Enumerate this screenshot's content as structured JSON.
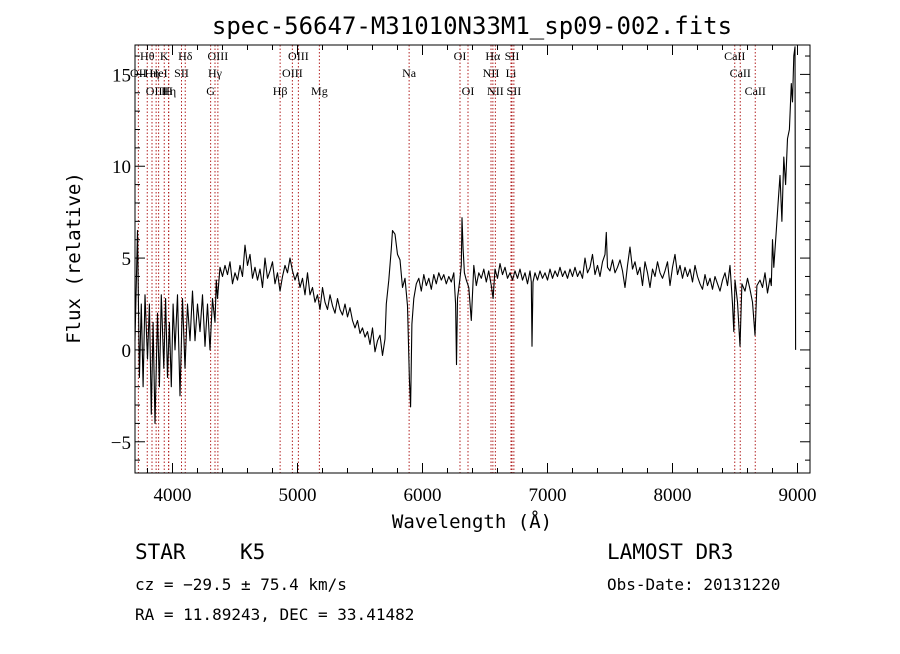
{
  "chart_data": {
    "type": "line",
    "title": "spec-56647-M31010N33M1_sp09-002.fits",
    "xlabel": "Wavelength (Å)",
    "ylabel": "Flux (relative)",
    "xlim": [
      3700,
      9100
    ],
    "ylim": [
      -6.7,
      16.6
    ],
    "x_ticks": [
      4000,
      5000,
      6000,
      7000,
      8000,
      9000
    ],
    "y_ticks": [
      -5,
      0,
      5,
      10,
      15
    ],
    "x_minor_step": 200,
    "y_minor_step": 1,
    "line_color": "#000000",
    "marker_color": "#b22222",
    "spectrum": {
      "name": "flux",
      "points": [
        [
          3700,
          0.5
        ],
        [
          3720,
          6.5
        ],
        [
          3735,
          -1.5
        ],
        [
          3750,
          2.5
        ],
        [
          3765,
          -2.0
        ],
        [
          3780,
          3.0
        ],
        [
          3800,
          -0.5
        ],
        [
          3815,
          2.5
        ],
        [
          3830,
          -3.5
        ],
        [
          3845,
          1.5
        ],
        [
          3860,
          -4.0
        ],
        [
          3880,
          2.0
        ],
        [
          3895,
          -2.0
        ],
        [
          3910,
          3.0
        ],
        [
          3930,
          -1.0
        ],
        [
          3945,
          2.8
        ],
        [
          3960,
          -1.5
        ],
        [
          3975,
          1.5
        ],
        [
          3990,
          -2.0
        ],
        [
          4005,
          2.5
        ],
        [
          4020,
          0.0
        ],
        [
          4040,
          3.0
        ],
        [
          4060,
          -2.5
        ],
        [
          4080,
          2.8
        ],
        [
          4100,
          -1.0
        ],
        [
          4120,
          2.5
        ],
        [
          4140,
          0.5
        ],
        [
          4160,
          3.2
        ],
        [
          4180,
          0.5
        ],
        [
          4200,
          2.5
        ],
        [
          4220,
          1.0
        ],
        [
          4240,
          3.0
        ],
        [
          4260,
          0.2
        ],
        [
          4280,
          2.5
        ],
        [
          4300,
          0.0
        ],
        [
          4320,
          2.8
        ],
        [
          4340,
          1.5
        ],
        [
          4350,
          3.8
        ],
        [
          4360,
          2.8
        ],
        [
          4380,
          4.5
        ],
        [
          4400,
          4.0
        ],
        [
          4420,
          4.6
        ],
        [
          4440,
          4.1
        ],
        [
          4460,
          4.8
        ],
        [
          4480,
          3.6
        ],
        [
          4500,
          4.2
        ],
        [
          4520,
          3.8
        ],
        [
          4540,
          4.6
        ],
        [
          4560,
          4.0
        ],
        [
          4580,
          5.7
        ],
        [
          4600,
          4.6
        ],
        [
          4620,
          5.2
        ],
        [
          4640,
          3.9
        ],
        [
          4660,
          4.5
        ],
        [
          4680,
          3.8
        ],
        [
          4700,
          4.4
        ],
        [
          4720,
          3.4
        ],
        [
          4740,
          5.0
        ],
        [
          4760,
          3.9
        ],
        [
          4780,
          4.3
        ],
        [
          4800,
          4.8
        ],
        [
          4820,
          3.6
        ],
        [
          4840,
          4.2
        ],
        [
          4860,
          3.2
        ],
        [
          4880,
          4.0
        ],
        [
          4900,
          4.6
        ],
        [
          4920,
          4.2
        ],
        [
          4940,
          5.0
        ],
        [
          4960,
          4.3
        ],
        [
          4980,
          3.8
        ],
        [
          5000,
          4.2
        ],
        [
          5020,
          3.4
        ],
        [
          5040,
          3.9
        ],
        [
          5060,
          3.0
        ],
        [
          5080,
          4.2
        ],
        [
          5100,
          3.0
        ],
        [
          5120,
          3.4
        ],
        [
          5140,
          2.6
        ],
        [
          5160,
          3.0
        ],
        [
          5180,
          2.2
        ],
        [
          5200,
          3.4
        ],
        [
          5220,
          2.6
        ],
        [
          5240,
          2.2
        ],
        [
          5260,
          3.0
        ],
        [
          5280,
          2.4
        ],
        [
          5300,
          2.0
        ],
        [
          5320,
          2.8
        ],
        [
          5340,
          2.2
        ],
        [
          5360,
          1.9
        ],
        [
          5380,
          2.5
        ],
        [
          5400,
          1.8
        ],
        [
          5420,
          2.3
        ],
        [
          5440,
          1.6
        ],
        [
          5460,
          1.2
        ],
        [
          5480,
          1.6
        ],
        [
          5500,
          0.9
        ],
        [
          5520,
          1.2
        ],
        [
          5540,
          0.7
        ],
        [
          5560,
          1.0
        ],
        [
          5580,
          0.3
        ],
        [
          5600,
          1.2
        ],
        [
          5620,
          -0.1
        ],
        [
          5640,
          0.5
        ],
        [
          5660,
          0.8
        ],
        [
          5680,
          -0.3
        ],
        [
          5700,
          0.6
        ],
        [
          5710,
          2.5
        ],
        [
          5730,
          3.8
        ],
        [
          5750,
          5.5
        ],
        [
          5760,
          6.5
        ],
        [
          5780,
          6.3
        ],
        [
          5800,
          5.2
        ],
        [
          5820,
          4.9
        ],
        [
          5840,
          3.4
        ],
        [
          5860,
          3.9
        ],
        [
          5880,
          2.4
        ],
        [
          5895,
          -1.6
        ],
        [
          5905,
          -3.1
        ],
        [
          5915,
          1.4
        ],
        [
          5930,
          2.8
        ],
        [
          5950,
          3.6
        ],
        [
          5970,
          3.9
        ],
        [
          5990,
          3.2
        ],
        [
          6010,
          4.1
        ],
        [
          6030,
          3.5
        ],
        [
          6050,
          3.9
        ],
        [
          6070,
          3.3
        ],
        [
          6090,
          4.1
        ],
        [
          6110,
          3.6
        ],
        [
          6130,
          4.2
        ],
        [
          6150,
          3.8
        ],
        [
          6170,
          4.1
        ],
        [
          6190,
          3.6
        ],
        [
          6210,
          4.0
        ],
        [
          6230,
          3.7
        ],
        [
          6250,
          4.2
        ],
        [
          6265,
          2.5
        ],
        [
          6272,
          -0.8
        ],
        [
          6280,
          2.8
        ],
        [
          6300,
          3.9
        ],
        [
          6310,
          4.6
        ],
        [
          6316,
          7.2
        ],
        [
          6325,
          5.5
        ],
        [
          6335,
          4.2
        ],
        [
          6350,
          3.8
        ],
        [
          6370,
          3.4
        ],
        [
          6390,
          1.6
        ],
        [
          6410,
          4.6
        ],
        [
          6430,
          3.5
        ],
        [
          6450,
          4.2
        ],
        [
          6470,
          3.9
        ],
        [
          6490,
          4.4
        ],
        [
          6510,
          3.7
        ],
        [
          6530,
          4.3
        ],
        [
          6550,
          3.5
        ],
        [
          6565,
          2.8
        ],
        [
          6580,
          4.4
        ],
        [
          6600,
          3.9
        ],
        [
          6620,
          4.7
        ],
        [
          6640,
          4.1
        ],
        [
          6660,
          4.5
        ],
        [
          6680,
          3.9
        ],
        [
          6700,
          4.2
        ],
        [
          6720,
          3.8
        ],
        [
          6740,
          4.3
        ],
        [
          6760,
          3.9
        ],
        [
          6780,
          4.4
        ],
        [
          6800,
          3.8
        ],
        [
          6820,
          4.2
        ],
        [
          6840,
          3.6
        ],
        [
          6860,
          4.3
        ],
        [
          6870,
          3.7
        ],
        [
          6876,
          0.2
        ],
        [
          6884,
          3.7
        ],
        [
          6900,
          4.2
        ],
        [
          6920,
          3.8
        ],
        [
          6940,
          4.3
        ],
        [
          6960,
          3.9
        ],
        [
          6980,
          4.2
        ],
        [
          7000,
          3.8
        ],
        [
          7020,
          4.4
        ],
        [
          7040,
          3.9
        ],
        [
          7060,
          4.3
        ],
        [
          7080,
          4.0
        ],
        [
          7100,
          4.5
        ],
        [
          7120,
          4.0
        ],
        [
          7140,
          4.3
        ],
        [
          7160,
          3.9
        ],
        [
          7180,
          4.4
        ],
        [
          7200,
          4.0
        ],
        [
          7220,
          4.5
        ],
        [
          7240,
          4.0
        ],
        [
          7260,
          4.3
        ],
        [
          7280,
          3.9
        ],
        [
          7300,
          5.0
        ],
        [
          7320,
          4.2
        ],
        [
          7340,
          4.5
        ],
        [
          7360,
          5.2
        ],
        [
          7380,
          4.1
        ],
        [
          7400,
          4.6
        ],
        [
          7420,
          4.0
        ],
        [
          7440,
          4.8
        ],
        [
          7460,
          5.2
        ],
        [
          7470,
          6.4
        ],
        [
          7480,
          4.5
        ],
        [
          7500,
          4.3
        ],
        [
          7520,
          4.9
        ],
        [
          7540,
          4.2
        ],
        [
          7560,
          4.5
        ],
        [
          7580,
          4.9
        ],
        [
          7600,
          4.3
        ],
        [
          7620,
          3.4
        ],
        [
          7640,
          4.6
        ],
        [
          7660,
          5.6
        ],
        [
          7680,
          4.4
        ],
        [
          7700,
          4.8
        ],
        [
          7720,
          4.1
        ],
        [
          7740,
          4.5
        ],
        [
          7760,
          3.5
        ],
        [
          7780,
          4.8
        ],
        [
          7800,
          4.2
        ],
        [
          7820,
          3.4
        ],
        [
          7840,
          4.4
        ],
        [
          7860,
          4.0
        ],
        [
          7880,
          4.8
        ],
        [
          7900,
          4.2
        ],
        [
          7920,
          3.9
        ],
        [
          7940,
          4.3
        ],
        [
          7960,
          4.8
        ],
        [
          7980,
          3.5
        ],
        [
          8000,
          4.5
        ],
        [
          8020,
          5.2
        ],
        [
          8040,
          4.1
        ],
        [
          8060,
          4.6
        ],
        [
          8080,
          3.9
        ],
        [
          8100,
          4.5
        ],
        [
          8120,
          4.0
        ],
        [
          8140,
          4.4
        ],
        [
          8160,
          3.7
        ],
        [
          8180,
          4.6
        ],
        [
          8200,
          4.0
        ],
        [
          8220,
          3.6
        ],
        [
          8240,
          3.3
        ],
        [
          8260,
          4.1
        ],
        [
          8280,
          3.5
        ],
        [
          8300,
          3.9
        ],
        [
          8320,
          3.3
        ],
        [
          8340,
          4.0
        ],
        [
          8360,
          3.6
        ],
        [
          8380,
          3.2
        ],
        [
          8400,
          3.8
        ],
        [
          8420,
          4.2
        ],
        [
          8440,
          3.5
        ],
        [
          8460,
          4.6
        ],
        [
          8480,
          2.5
        ],
        [
          8490,
          1.0
        ],
        [
          8500,
          3.8
        ],
        [
          8520,
          2.6
        ],
        [
          8540,
          0.2
        ],
        [
          8555,
          3.6
        ],
        [
          8580,
          3.2
        ],
        [
          8600,
          3.9
        ],
        [
          8620,
          3.3
        ],
        [
          8640,
          2.6
        ],
        [
          8660,
          0.8
        ],
        [
          8675,
          3.5
        ],
        [
          8700,
          3.8
        ],
        [
          8720,
          3.4
        ],
        [
          8740,
          4.2
        ],
        [
          8760,
          3.1
        ],
        [
          8780,
          3.9
        ],
        [
          8790,
          3.5
        ],
        [
          8800,
          6.0
        ],
        [
          8810,
          4.5
        ],
        [
          8830,
          6.5
        ],
        [
          8845,
          8.0
        ],
        [
          8860,
          9.5
        ],
        [
          8875,
          7.0
        ],
        [
          8890,
          10.5
        ],
        [
          8905,
          9.0
        ],
        [
          8920,
          11.5
        ],
        [
          8935,
          12.0
        ],
        [
          8950,
          14.5
        ],
        [
          8960,
          13.5
        ],
        [
          8970,
          16.0
        ],
        [
          8980,
          16.5
        ],
        [
          8985,
          0.0
        ]
      ]
    },
    "spectral_lines": [
      {
        "label": "Hθ",
        "wavelength": 3798,
        "row": 0
      },
      {
        "label": "OII",
        "wavelength": 3727,
        "row": 1
      },
      {
        "label": "Hη",
        "wavelength": 3836,
        "row": 1
      },
      {
        "label": "K",
        "wavelength": 3934,
        "row": 0
      },
      {
        "label": "OIII",
        "wavelength": 3869,
        "row": 2
      },
      {
        "label": "HeI",
        "wavelength": 3889,
        "row": 1
      },
      {
        "label": "Hη",
        "wavelength": 3970,
        "row": 2
      },
      {
        "label": "SII",
        "wavelength": 4072,
        "row": 1
      },
      {
        "label": "H",
        "wavelength": 3968,
        "row": 2
      },
      {
        "label": "Hδ",
        "wavelength": 4102,
        "row": 0
      },
      {
        "label": "OIII",
        "wavelength": 4363,
        "row": 0
      },
      {
        "label": "Hγ",
        "wavelength": 4340,
        "row": 1
      },
      {
        "label": "G",
        "wavelength": 4305,
        "row": 2
      },
      {
        "label": "OIII",
        "wavelength": 5007,
        "row": 0
      },
      {
        "label": "OIII",
        "wavelength": 4959,
        "row": 1
      },
      {
        "label": "Hβ",
        "wavelength": 4861,
        "row": 2
      },
      {
        "label": "Mg",
        "wavelength": 5175,
        "row": 2
      },
      {
        "label": "Na",
        "wavelength": 5893,
        "row": 1
      },
      {
        "label": "OI",
        "wavelength": 6300,
        "row": 0
      },
      {
        "label": "OI",
        "wavelength": 6364,
        "row": 2
      },
      {
        "label": "Hα",
        "wavelength": 6563,
        "row": 0
      },
      {
        "label": "NII",
        "wavelength": 6548,
        "row": 1
      },
      {
        "label": "NII",
        "wavelength": 6583,
        "row": 2
      },
      {
        "label": "SII",
        "wavelength": 6716,
        "row": 0
      },
      {
        "label": "Li",
        "wavelength": 6708,
        "row": 1
      },
      {
        "label": "SII",
        "wavelength": 6731,
        "row": 2
      },
      {
        "label": "CaII",
        "wavelength": 8498,
        "row": 0
      },
      {
        "label": "CaII",
        "wavelength": 8542,
        "row": 1
      },
      {
        "label": "CaII",
        "wavelength": 8662,
        "row": 2
      }
    ]
  },
  "info": {
    "class": "STAR",
    "subclass": "K5",
    "survey": "LAMOST DR3",
    "redshift": "cz = −29.5 ± 75.4 km/s",
    "obs_date": "Obs-Date: 20131220",
    "coords": "RA =  11.89243, DEC =  33.41482"
  }
}
